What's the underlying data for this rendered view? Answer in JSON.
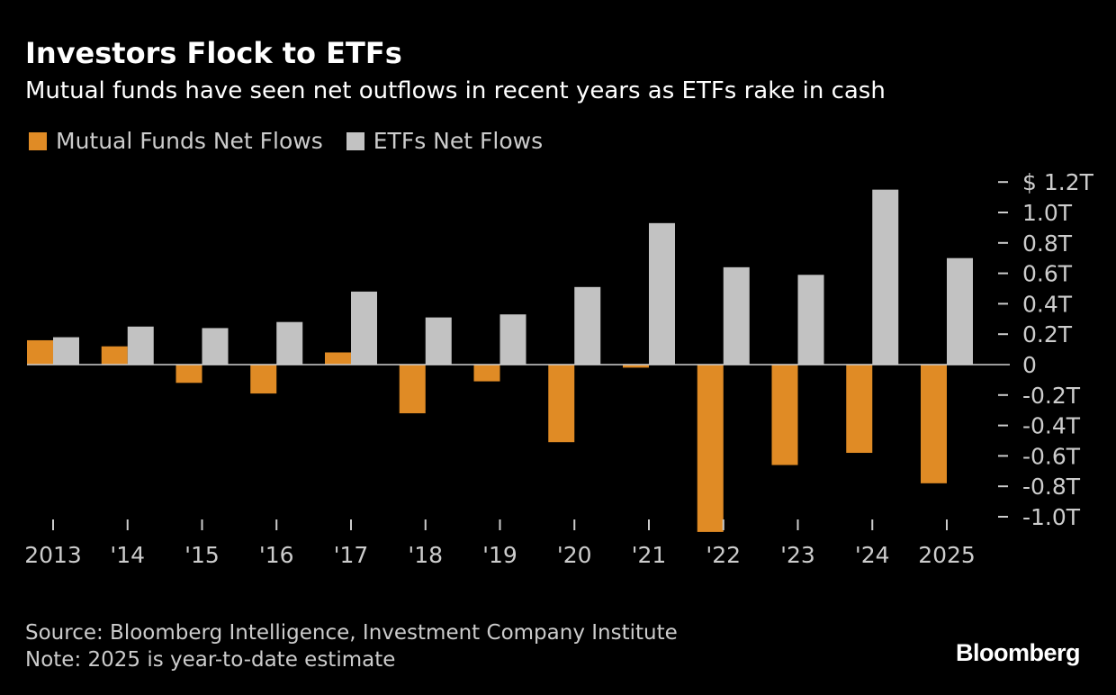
{
  "header": {
    "title": "Investors Flock to ETFs",
    "subtitle": "Mutual funds have seen net outflows in recent years as ETFs rake in cash"
  },
  "legend": {
    "items": [
      {
        "label": "Mutual Funds Net Flows",
        "color": "#e08b25"
      },
      {
        "label": "ETFs Net Flows",
        "color": "#c2c2c2"
      }
    ]
  },
  "footer": {
    "source": "Source: Bloomberg Intelligence, Investment Company Institute",
    "note": "Note: 2025 is year-to-date estimate"
  },
  "brand": "Bloomberg",
  "chart_data": {
    "type": "bar",
    "categories": [
      "2013",
      "'14",
      "'15",
      "'16",
      "'17",
      "'18",
      "'19",
      "'20",
      "'21",
      "'22",
      "'23",
      "'24",
      "2025"
    ],
    "series": [
      {
        "name": "Mutual Funds Net Flows",
        "color": "#e08b25",
        "values": [
          0.16,
          0.12,
          -0.12,
          -0.19,
          0.08,
          -0.32,
          -0.11,
          -0.51,
          -0.02,
          -1.1,
          -0.66,
          -0.58,
          -0.78
        ]
      },
      {
        "name": "ETFs Net Flows",
        "color": "#c2c2c2",
        "values": [
          0.18,
          0.25,
          0.24,
          0.28,
          0.48,
          0.31,
          0.33,
          0.51,
          0.93,
          0.64,
          0.59,
          1.15,
          0.7
        ]
      }
    ],
    "y_ticks": [
      {
        "value": 1.2,
        "label": "$ 1.2T"
      },
      {
        "value": 1.0,
        "label": "1.0T"
      },
      {
        "value": 0.8,
        "label": "0.8T"
      },
      {
        "value": 0.6,
        "label": "0.6T"
      },
      {
        "value": 0.4,
        "label": "0.4T"
      },
      {
        "value": 0.2,
        "label": "0.2T"
      },
      {
        "value": 0,
        "label": "0"
      },
      {
        "value": -0.2,
        "label": "-0.2T"
      },
      {
        "value": -0.4,
        "label": "-0.4T"
      },
      {
        "value": -0.6,
        "label": "-0.6T"
      },
      {
        "value": -0.8,
        "label": "-0.8T"
      },
      {
        "value": -1.0,
        "label": "-1.0T"
      }
    ],
    "ylim": [
      -1.1,
      1.25
    ],
    "y_axis_position": "right",
    "grid": false,
    "legend_position": "top-left"
  }
}
